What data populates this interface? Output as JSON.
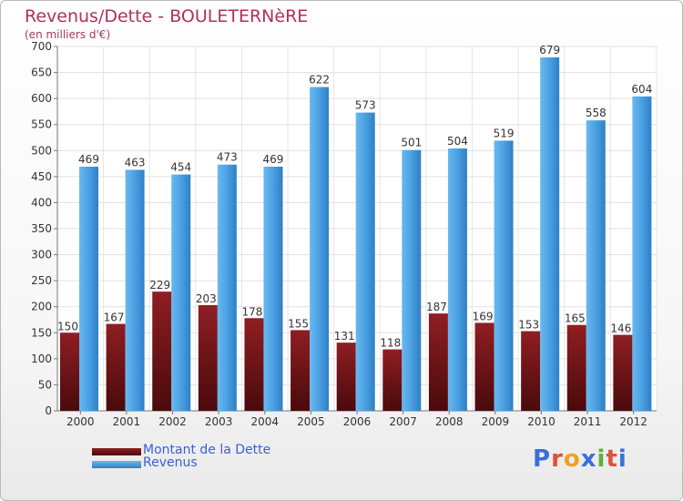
{
  "header": {
    "title": "Revenus/Dette - BOULETERNèRE",
    "subtitle": "(en milliers d'€)"
  },
  "legend": {
    "dette_label": "Montant de la Dette",
    "revenus_label": "Revenus"
  },
  "logo": {
    "text": "Proxiti",
    "letters": [
      "P",
      "r",
      "o",
      "x",
      "i",
      "t",
      "i"
    ],
    "colors": [
      "#3a6fd8",
      "#e1513c",
      "#f0a020",
      "#3a6fd8",
      "#58b23c",
      "#e1513c",
      "#3a6fd8"
    ]
  },
  "colors": {
    "dette": "#7a1518",
    "revenus": "#4a9fe0",
    "title": "#b0305e",
    "legend_text": "#3c5fd6"
  },
  "chart_data": {
    "type": "bar",
    "title": "Revenus/Dette - BOULETERNèRE",
    "subtitle": "(en milliers d'€)",
    "categories": [
      "2000",
      "2001",
      "2002",
      "2003",
      "2004",
      "2005",
      "2006",
      "2007",
      "2008",
      "2009",
      "2010",
      "2011",
      "2012"
    ],
    "series": [
      {
        "name": "Montant de la Dette",
        "values": [
          150,
          167,
          229,
          203,
          178,
          155,
          131,
          118,
          187,
          169,
          153,
          165,
          146
        ]
      },
      {
        "name": "Revenus",
        "values": [
          469,
          463,
          454,
          473,
          469,
          622,
          573,
          501,
          504,
          519,
          679,
          558,
          604
        ]
      }
    ],
    "ylim": [
      0,
      700
    ],
    "yticks": [
      0,
      50,
      100,
      150,
      200,
      250,
      300,
      350,
      400,
      450,
      500,
      550,
      600,
      650,
      700
    ],
    "grid": true,
    "legend_position": "bottom-left"
  }
}
